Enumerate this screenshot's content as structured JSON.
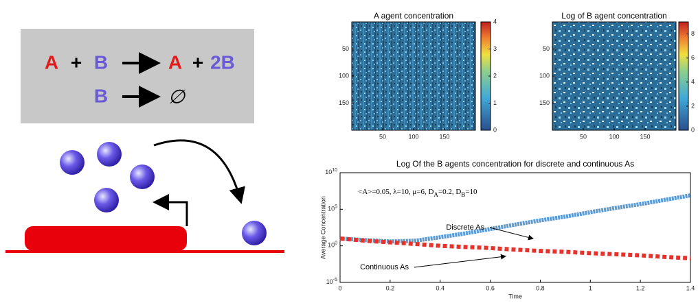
{
  "reaction": {
    "lines": [
      [
        "A",
        "+",
        "B",
        "A",
        "+",
        "2B"
      ],
      [
        "B",
        "∅"
      ]
    ]
  },
  "chart_data": [
    {
      "type": "heatmap",
      "title": "A agent concentration",
      "xlim": [
        0,
        200
      ],
      "ylim": [
        200,
        0
      ],
      "xticks": [
        50,
        100,
        150
      ],
      "yticks": [
        50,
        100,
        150
      ],
      "clim": [
        0,
        4
      ],
      "cticks": [
        0,
        1,
        2,
        3,
        4
      ]
    },
    {
      "type": "heatmap",
      "title": "Log of B agent concentration",
      "xlim": [
        0,
        200
      ],
      "ylim": [
        200,
        0
      ],
      "xticks": [
        50,
        100,
        150
      ],
      "yticks": [
        50,
        100,
        150
      ],
      "clim": [
        0,
        9
      ],
      "cticks": [
        0,
        2,
        4,
        6,
        8
      ]
    },
    {
      "type": "line",
      "title": "Log Of the B agents concentration for discrete and continuous As",
      "annotation": "<A>=0.05, λ=10, μ=6, D_A=0.2, D_B=10",
      "x_label": "Time",
      "y_label": "Average Concentration",
      "log_y": true,
      "xlim": [
        0,
        1.4
      ],
      "xticks": [
        0,
        0.2,
        0.4,
        0.6,
        0.8,
        1,
        1.2,
        1.4
      ],
      "ylim": [
        1e-05,
        10000000000
      ],
      "yticks": [
        {
          "value": 1e-05,
          "label": "10^-5"
        },
        {
          "value": 1,
          "label": "10^0"
        },
        {
          "value": 100000,
          "label": "10^5"
        },
        {
          "value": 10000000000,
          "label": "10^10"
        }
      ],
      "x": [
        0,
        0.1,
        0.2,
        0.3,
        0.4,
        0.5,
        0.6,
        0.7,
        0.8,
        0.9,
        1,
        1.1,
        1.2,
        1.3,
        1.4
      ],
      "series": [
        {
          "name": "Discrete As",
          "color": "#5b9bd5",
          "values": [
            10,
            6,
            4,
            5,
            15,
            50,
            200,
            800,
            3000,
            10000,
            40000,
            150000,
            500000,
            2000000,
            8000000
          ]
        },
        {
          "name": "Continuous As",
          "color": "#e8312a",
          "values": [
            10,
            5,
            3,
            1.8,
            1,
            0.7,
            0.5,
            0.3,
            0.2,
            0.15,
            0.1,
            0.07,
            0.05,
            0.03,
            0.02
          ]
        }
      ]
    }
  ]
}
